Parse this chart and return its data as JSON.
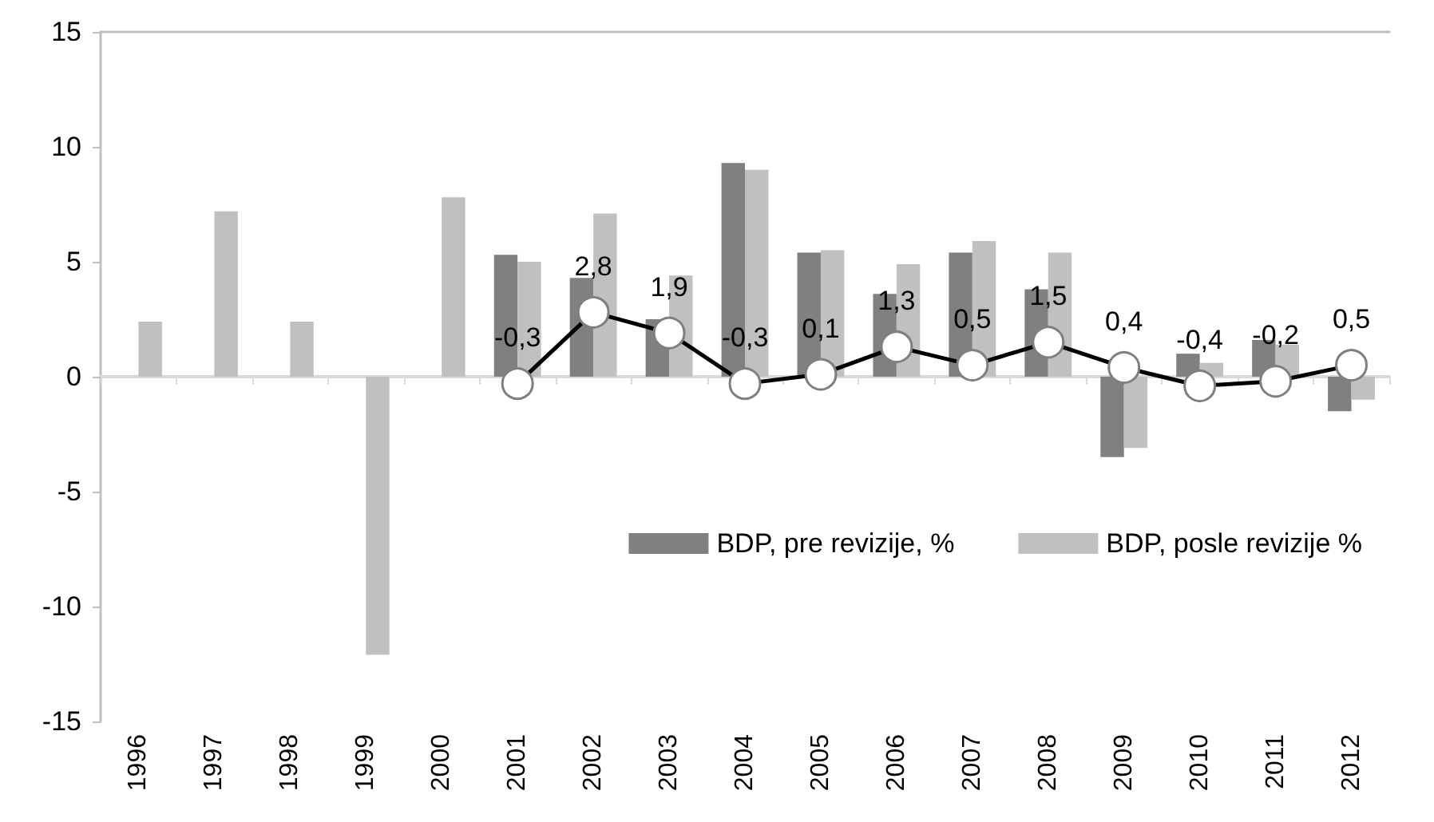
{
  "chart_data": {
    "type": "bar",
    "categories": [
      "1996",
      "1997",
      "1998",
      "1999",
      "2000",
      "2001",
      "2002",
      "2003",
      "2004",
      "2005",
      "2006",
      "2007",
      "2008",
      "2009",
      "2010",
      "2011",
      "2012"
    ],
    "series": [
      {
        "name": "BDP, pre revizije, %",
        "color": "#808080",
        "values": [
          null,
          null,
          null,
          null,
          null,
          5.3,
          4.3,
          2.5,
          9.3,
          5.4,
          3.6,
          5.4,
          3.8,
          -3.5,
          1.0,
          1.6,
          -1.5
        ]
      },
      {
        "name": "BDP, posle revizije %",
        "color": "#c0c0c0",
        "values": [
          2.4,
          7.2,
          2.4,
          -12.1,
          7.8,
          5.0,
          7.1,
          4.4,
          9.0,
          5.5,
          4.9,
          5.9,
          5.4,
          -3.1,
          0.6,
          1.4,
          -1.0
        ]
      },
      {
        "type": "line",
        "color": "#000000",
        "values": [
          null,
          null,
          null,
          null,
          null,
          -0.3,
          2.8,
          1.9,
          -0.3,
          0.1,
          1.3,
          0.5,
          1.5,
          0.4,
          -0.4,
          -0.2,
          0.5
        ],
        "value_labels": [
          null,
          null,
          null,
          null,
          null,
          "-0,3",
          "2,8",
          "1,9",
          "-0,3",
          "0,1",
          "1,3",
          "0,5",
          "1,5",
          "0,4",
          "-0,4",
          "-0,2",
          "0,5"
        ]
      }
    ],
    "ylim": [
      -15,
      15
    ],
    "yticks": [
      -15,
      -10,
      -5,
      0,
      5,
      10,
      15
    ],
    "legend": "bottom right",
    "marker": "circle",
    "line_style": "solid"
  }
}
